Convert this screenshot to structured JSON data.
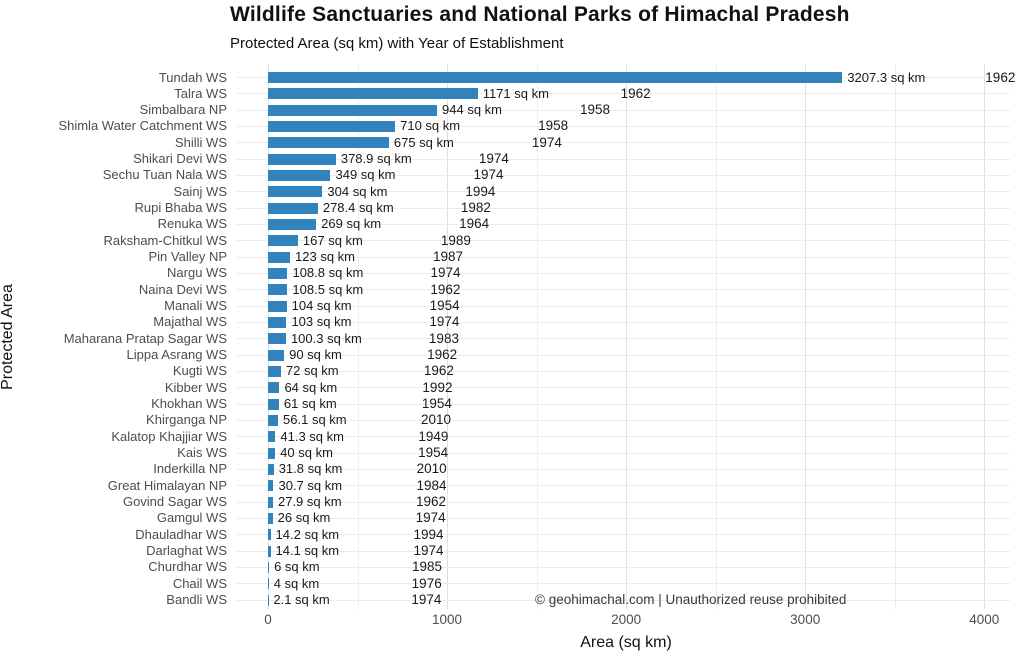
{
  "title": "Wildlife Sanctuaries and National Parks of Himachal Pradesh",
  "subtitle": "Protected Area (sq km) with Year of Establishment",
  "watermark": "© geohimachal.com | Unauthorized reuse prohibited",
  "colors": {
    "bar": "#3182bd",
    "grid_major": "#e0e0e0",
    "grid_minor": "#eeeeee",
    "row_grid": "#ebebeb",
    "category_text": "#4d4d4d",
    "tick_text": "#4d4d4d",
    "label_text": "#1a1a1a"
  },
  "chart_data": {
    "type": "bar",
    "orientation": "horizontal",
    "title": "Wildlife Sanctuaries and National Parks of Himachal Pradesh",
    "subtitle": "Protected Area (sq km) with Year of Establishment",
    "xlabel": "Area (sq km)",
    "ylabel": "Protected Area",
    "xlim": [
      0,
      4000
    ],
    "xticks": [
      0,
      1000,
      2000,
      3000,
      4000
    ],
    "grid": "light gray vertical lines every 500 and one horizontal line per category, white background",
    "legend": "none",
    "unit": "sq km",
    "categories": [
      "Tundah WS",
      "Talra WS",
      "Simbalbara NP",
      "Shimla Water Catchment WS",
      "Shilli WS",
      "Shikari Devi WS",
      "Sechu Tuan Nala WS",
      "Sainj WS",
      "Rupi Bhaba WS",
      "Renuka WS",
      "Raksham-Chitkul WS",
      "Pin Valley NP",
      "Nargu WS",
      "Naina Devi WS",
      "Manali WS",
      "Majathal WS",
      "Maharana Pratap Sagar WS",
      "Lippa Asrang WS",
      "Kugti WS",
      "Kibber WS",
      "Khokhan WS",
      "Khirganga NP",
      "Kalatop Khajjiar WS",
      "Kais WS",
      "Inderkilla NP",
      "Great Himalayan NP",
      "Govind Sagar WS",
      "Gamgul WS",
      "Dhauladhar WS",
      "Darlaghat WS",
      "Churdhar WS",
      "Chail WS",
      "Bandli WS"
    ],
    "values": [
      3207.3,
      1171,
      944,
      710,
      675,
      378.9,
      349,
      304,
      278.4,
      269,
      167,
      123,
      108.8,
      108.5,
      104,
      103,
      100.3,
      90,
      72,
      64,
      61,
      56.1,
      41.3,
      40,
      31.8,
      30.7,
      27.9,
      26,
      14.2,
      14.1,
      6,
      4,
      2.1
    ],
    "years": [
      1962,
      1962,
      1958,
      1958,
      1974,
      1974,
      1974,
      1994,
      1982,
      1964,
      1989,
      1987,
      1974,
      1962,
      1954,
      1974,
      1983,
      1962,
      1962,
      1992,
      1954,
      2010,
      1949,
      1954,
      2010,
      1984,
      1962,
      1974,
      1994,
      1974,
      1985,
      1976,
      1974
    ]
  }
}
